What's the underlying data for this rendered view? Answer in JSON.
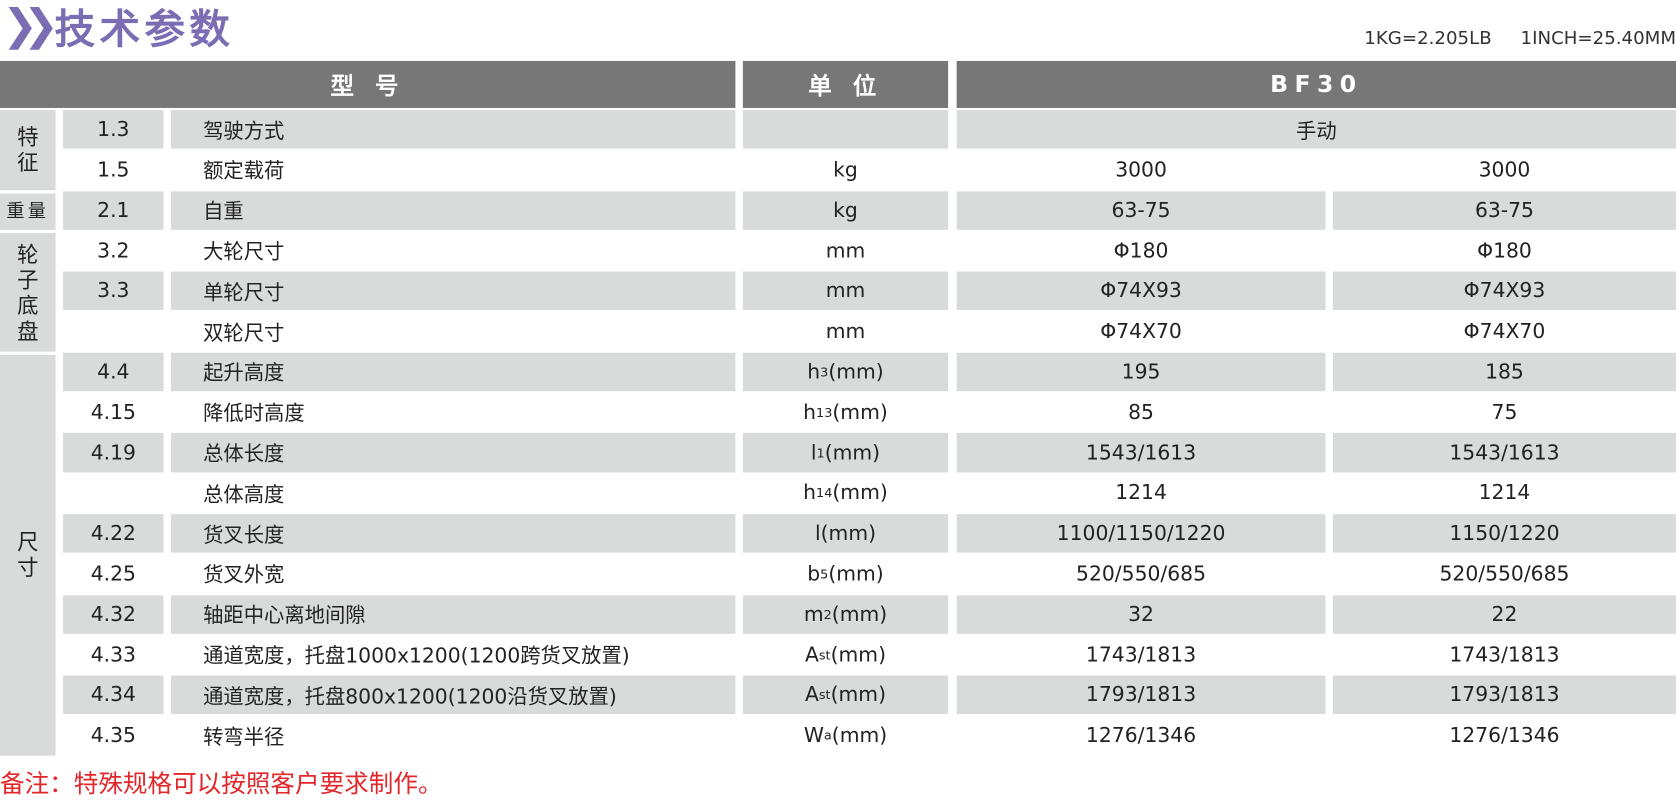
{
  "title": "技术参数",
  "title_icon": "double-chevron-right-icon",
  "accent_color": "#7b6db3",
  "unit_conversion": "1KG=2.205LB     1INCH=25.40MM",
  "header": {
    "model": "型 号",
    "unit": "单 位",
    "product": "BF30"
  },
  "categories": [
    {
      "label": "特征",
      "rows": 2,
      "horizontal": false
    },
    {
      "label": "重量",
      "rows": 1,
      "horizontal": true
    },
    {
      "label": "轮子底盘",
      "rows": 3,
      "horizontal": false
    },
    {
      "label": "尺寸",
      "rows": 10,
      "horizontal": false
    }
  ],
  "rows": [
    {
      "no": "1.3",
      "name": "驾驶方式",
      "unit": {
        "base": "",
        "sub": "",
        "rest": ""
      },
      "merged": "手动"
    },
    {
      "no": "1.5",
      "name": "额定载荷",
      "unit": {
        "base": "kg",
        "sub": "",
        "rest": ""
      },
      "v1": "3000",
      "v2": "3000"
    },
    {
      "no": "2.1",
      "name": "自重",
      "unit": {
        "base": "kg",
        "sub": "",
        "rest": ""
      },
      "v1": "63-75",
      "v2": "63-75"
    },
    {
      "no": "3.2",
      "name": "大轮尺寸",
      "unit": {
        "base": "mm",
        "sub": "",
        "rest": ""
      },
      "v1": "Φ180",
      "v2": "Φ180"
    },
    {
      "no": "3.3",
      "name": "单轮尺寸",
      "unit": {
        "base": "mm",
        "sub": "",
        "rest": ""
      },
      "v1": "Φ74X93",
      "v2": "Φ74X93"
    },
    {
      "no": "",
      "name": "双轮尺寸",
      "unit": {
        "base": "mm",
        "sub": "",
        "rest": ""
      },
      "v1": "Φ74X70",
      "v2": "Φ74X70"
    },
    {
      "no": "4.4",
      "name": "起升高度",
      "unit": {
        "base": "h",
        "sub": "3",
        "rest": "(mm)"
      },
      "v1": "195",
      "v2": "185"
    },
    {
      "no": "4.15",
      "name": "降低时高度",
      "unit": {
        "base": "h",
        "sub": "13",
        "rest": "(mm)"
      },
      "v1": "85",
      "v2": "75"
    },
    {
      "no": "4.19",
      "name": "总体长度",
      "unit": {
        "base": "l",
        "sub": "1",
        "rest": "(mm)"
      },
      "v1": "1543/1613",
      "v2": "1543/1613"
    },
    {
      "no": "",
      "name": "总体高度",
      "unit": {
        "base": "h",
        "sub": "14",
        "rest": "(mm)"
      },
      "v1": "1214",
      "v2": "1214"
    },
    {
      "no": "4.22",
      "name": "货叉长度",
      "unit": {
        "base": "l",
        "sub": "",
        "rest": "(mm)"
      },
      "v1": "1100/1150/1220",
      "v2": "1150/1220"
    },
    {
      "no": "4.25",
      "name": "货叉外宽",
      "unit": {
        "base": "b",
        "sub": "5",
        "rest": "(mm)"
      },
      "v1": "520/550/685",
      "v2": "520/550/685"
    },
    {
      "no": "4.32",
      "name": "轴距中心离地间隙",
      "unit": {
        "base": "m",
        "sub": "2",
        "rest": "(mm)"
      },
      "v1": "32",
      "v2": "22"
    },
    {
      "no": "4.33",
      "name": "通道宽度，托盘1000x1200(1200跨货叉放置)",
      "unit": {
        "base": "A",
        "sub": "st",
        "rest": "(mm)"
      },
      "v1": "1743/1813",
      "v2": "1743/1813"
    },
    {
      "no": "4.34",
      "name": "通道宽度，托盘800x1200(1200沿货叉放置)",
      "unit": {
        "base": "A",
        "sub": "st",
        "rest": "(mm)"
      },
      "v1": "1793/1813",
      "v2": "1793/1813"
    },
    {
      "no": "4.35",
      "name": "转弯半径",
      "unit": {
        "base": "W",
        "sub": "a",
        "rest": "(mm)"
      },
      "v1": "1276/1346",
      "v2": "1276/1346"
    }
  ],
  "note": "备注：特殊规格可以按照客户要求制作。",
  "note_color": "#e3262a"
}
